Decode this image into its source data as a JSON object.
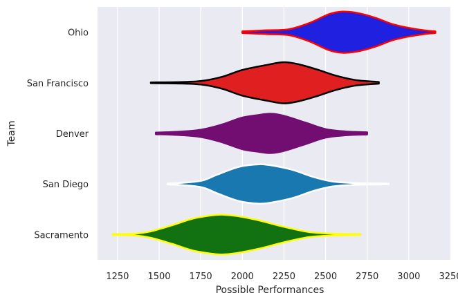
{
  "chart_data": {
    "type": "violin",
    "orientation": "horizontal",
    "title": "",
    "xlabel": "Possible Performances",
    "ylabel": "Team",
    "xlim": [
      1130,
      3250
    ],
    "xticks": [
      1250,
      1500,
      1750,
      2000,
      2250,
      2500,
      2750,
      3000,
      3250
    ],
    "grid": "vertical",
    "background": "#eaeaf2",
    "categories": [
      "Ohio",
      "San Francisco",
      "Denver",
      "San Diego",
      "Sacramento"
    ],
    "series": [
      {
        "category": "Ohio",
        "fill": "#2020e0",
        "edge": "#ff0000",
        "min": 2000,
        "max": 3160,
        "profile": [
          [
            2000,
            0.04
          ],
          [
            2150,
            0.09
          ],
          [
            2280,
            0.14
          ],
          [
            2400,
            0.42
          ],
          [
            2520,
            0.84
          ],
          [
            2600,
            0.96
          ],
          [
            2690,
            0.9
          ],
          [
            2800,
            0.67
          ],
          [
            2900,
            0.38
          ],
          [
            3000,
            0.2
          ],
          [
            3100,
            0.08
          ],
          [
            3160,
            0.04
          ]
        ]
      },
      {
        "category": "San Francisco",
        "fill": "#e02020",
        "edge": "#000000",
        "min": 1450,
        "max": 2820,
        "profile": [
          [
            1450,
            0.02
          ],
          [
            1600,
            0.03
          ],
          [
            1750,
            0.08
          ],
          [
            1880,
            0.28
          ],
          [
            2000,
            0.6
          ],
          [
            2150,
            0.84
          ],
          [
            2250,
            0.96
          ],
          [
            2340,
            0.86
          ],
          [
            2450,
            0.62
          ],
          [
            2560,
            0.34
          ],
          [
            2680,
            0.13
          ],
          [
            2820,
            0.04
          ]
        ]
      },
      {
        "category": "Denver",
        "fill": "#720e72",
        "edge": "#720e72",
        "min": 1480,
        "max": 2750,
        "profile": [
          [
            1480,
            0.04
          ],
          [
            1600,
            0.07
          ],
          [
            1750,
            0.17
          ],
          [
            1880,
            0.42
          ],
          [
            2000,
            0.74
          ],
          [
            2100,
            0.86
          ],
          [
            2170,
            0.92
          ],
          [
            2250,
            0.82
          ],
          [
            2380,
            0.5
          ],
          [
            2500,
            0.2
          ],
          [
            2620,
            0.09
          ],
          [
            2750,
            0.05
          ]
        ]
      },
      {
        "category": "San Diego",
        "fill": "#1a78b0",
        "edge": "#ffffff",
        "min": 1550,
        "max": 2880,
        "profile": [
          [
            1550,
            0.02
          ],
          [
            1650,
            0.06
          ],
          [
            1760,
            0.16
          ],
          [
            1850,
            0.44
          ],
          [
            1980,
            0.8
          ],
          [
            2100,
            0.92
          ],
          [
            2180,
            0.86
          ],
          [
            2300,
            0.66
          ],
          [
            2430,
            0.32
          ],
          [
            2540,
            0.12
          ],
          [
            2680,
            0.04
          ],
          [
            2880,
            0.02
          ]
        ]
      },
      {
        "category": "Sacramento",
        "fill": "#127212",
        "edge": "#ffff00",
        "min": 1220,
        "max": 2710,
        "profile": [
          [
            1220,
            0.02
          ],
          [
            1350,
            0.04
          ],
          [
            1450,
            0.15
          ],
          [
            1580,
            0.44
          ],
          [
            1700,
            0.74
          ],
          [
            1820,
            0.9
          ],
          [
            1880,
            0.93
          ],
          [
            1970,
            0.86
          ],
          [
            2100,
            0.66
          ],
          [
            2250,
            0.36
          ],
          [
            2400,
            0.12
          ],
          [
            2550,
            0.04
          ],
          [
            2710,
            0.02
          ]
        ]
      }
    ]
  }
}
